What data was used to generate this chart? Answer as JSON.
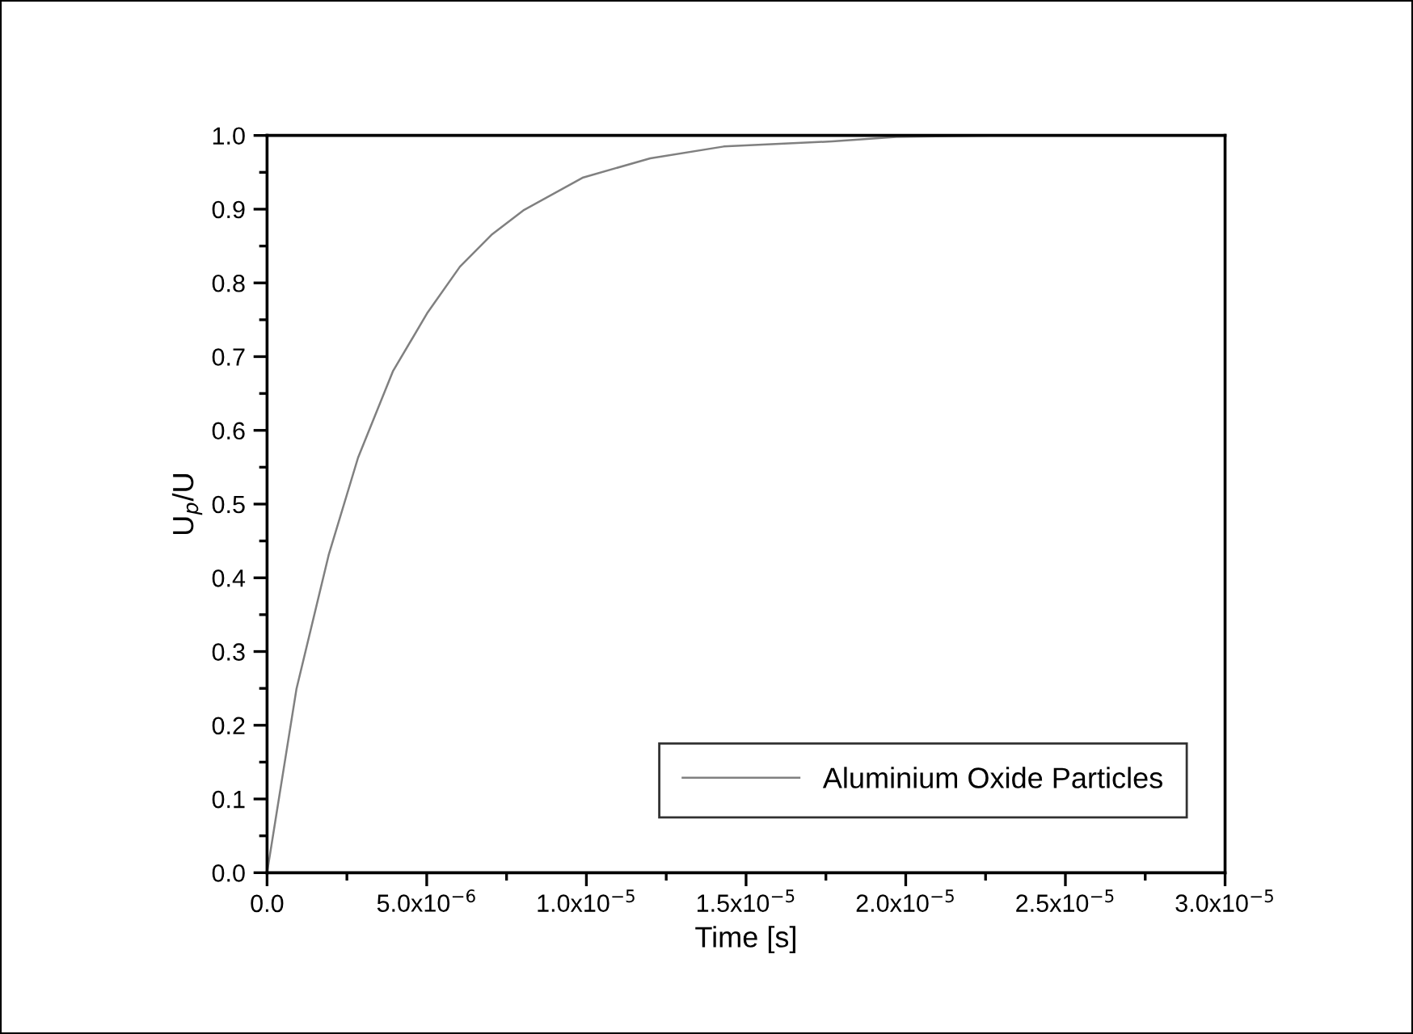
{
  "chart_data": {
    "type": "line",
    "xlabel": "Time [s]",
    "ylabel": "U$_{p}$/U",
    "x": [
      0,
      9.2e-07,
      1.93e-06,
      2.85e-06,
      3.94e-06,
      5.03e-06,
      6.04e-06,
      7.05e-06,
      8.05e-06,
      9.9e-06,
      1.2e-05,
      1.43e-05,
      1.77e-05,
      1.97e-05,
      2.26e-05
    ],
    "series": [
      {
        "name": "Aluminium Oxide Particles",
        "color": "#808080",
        "values": [
          0,
          0.249,
          0.431,
          0.563,
          0.68,
          0.76,
          0.822,
          0.866,
          0.899,
          0.943,
          0.969,
          0.985,
          0.992,
          0.998,
          1.0
        ]
      }
    ],
    "xlim": [
      0,
      3e-05
    ],
    "xticks": [
      {
        "value": 0,
        "label": "0.0"
      },
      {
        "value": 5e-06,
        "label": "5.0x10$^{−6}$"
      },
      {
        "value": 1e-05,
        "label": "1.0x10$^{−5}$"
      },
      {
        "value": 1.5e-05,
        "label": "1.5x10$^{−5}$"
      },
      {
        "value": 2e-05,
        "label": "2.0x10$^{−5}$"
      },
      {
        "value": 2.5e-05,
        "label": "2.5x10$^{−5}$"
      },
      {
        "value": 3e-05,
        "label": "3.0x10$^{−5}$"
      }
    ],
    "ylim": [
      0,
      1.0
    ],
    "yticks": [
      {
        "value": 0,
        "label": "0.0"
      },
      0.1,
      0.2,
      0.3,
      0.4,
      0.5,
      0.6,
      0.7,
      0.8,
      0.9,
      {
        "value": 1.0,
        "label": "1.0"
      }
    ],
    "grid": false,
    "legend": "bottom right",
    "marker": "none",
    "line_style": "solid"
  }
}
